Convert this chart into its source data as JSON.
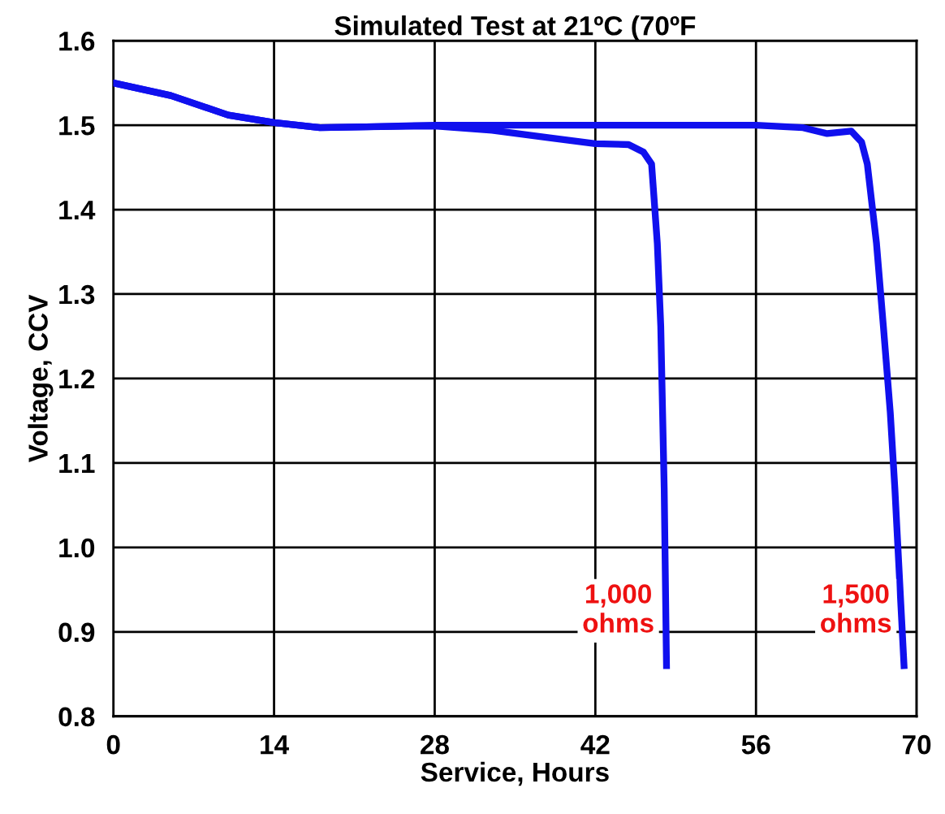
{
  "chart_data": {
    "type": "line",
    "title": "Simulated Test at 21ºC (70ºF",
    "xlabel": "Service, Hours",
    "ylabel": "Voltage, CCV",
    "xlim": [
      0,
      70
    ],
    "xticks": [
      0,
      14,
      28,
      42,
      56,
      70
    ],
    "ylim": [
      0.8,
      1.6
    ],
    "yticks": [
      0.8,
      0.9,
      {
        "value": 1,
        "label": "1.0"
      },
      1.1,
      1.2,
      1.3,
      1.4,
      1.5,
      1.6
    ],
    "grid": true,
    "legend": false,
    "marker": "none",
    "line_style": "solid",
    "series": [
      {
        "name": "1,000 ohms",
        "color": "#1010ee",
        "x": [
          0,
          5,
          10,
          14,
          18,
          22,
          28,
          33,
          38,
          42,
          44.9,
          46.2,
          46.9,
          47.4,
          47.7,
          48.0,
          48.2
        ],
        "values": [
          1.55,
          1.535,
          1.512,
          1.503,
          1.497,
          1.498,
          1.499,
          1.494,
          1.485,
          1.478,
          1.477,
          1.468,
          1.454,
          1.36,
          1.262,
          1.07,
          0.86
        ]
      },
      {
        "name": "1,500 ohms",
        "color": "#1010ee",
        "x": [
          0,
          5,
          10,
          14,
          18,
          22,
          28,
          35,
          42,
          49,
          56,
          60.1,
          62.2,
          64.3,
          65.2,
          65.7,
          66.5,
          67.1,
          67.7,
          68.1,
          68.9
        ],
        "values": [
          1.55,
          1.535,
          1.512,
          1.503,
          1.497,
          1.498,
          1.5,
          1.5,
          1.5,
          1.5,
          1.5,
          1.497,
          1.49,
          1.493,
          1.48,
          1.454,
          1.36,
          1.262,
          1.16,
          1.07,
          0.86
        ]
      }
    ]
  }
}
